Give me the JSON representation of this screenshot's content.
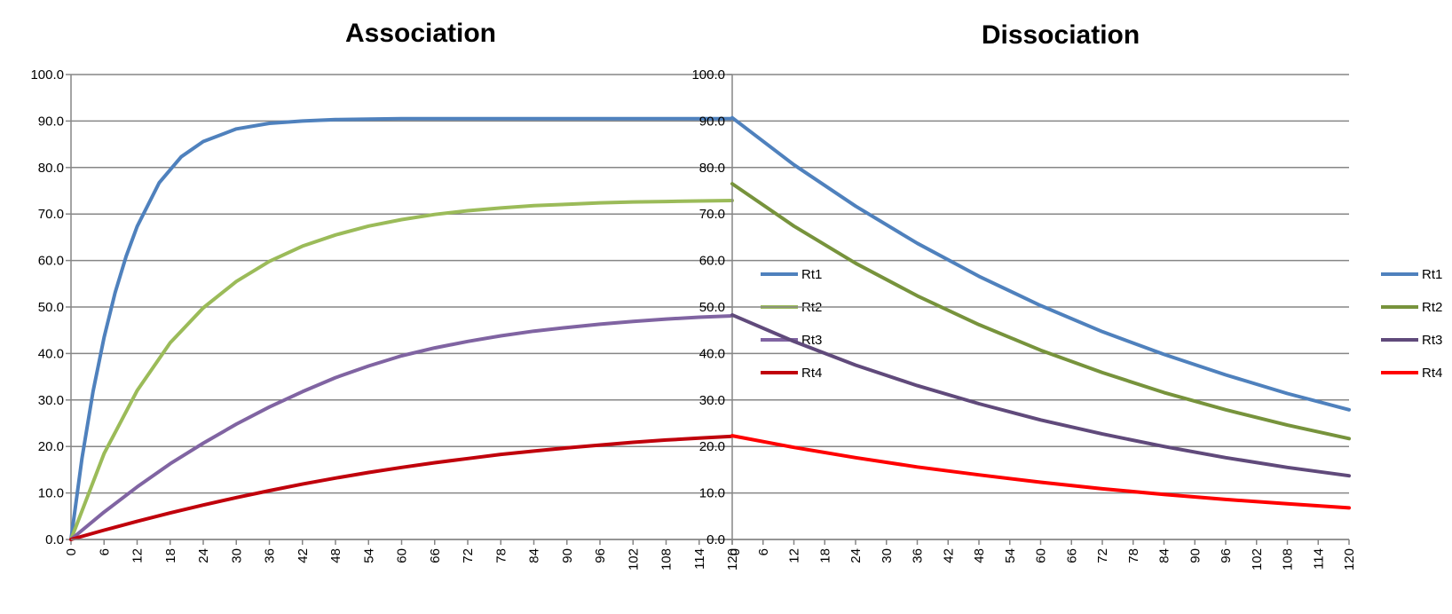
{
  "charts": [
    {
      "id": "association",
      "title": "Association",
      "legend_placement": "right-inside",
      "chart_data": {
        "type": "line",
        "title": "Association",
        "xlabel": "",
        "ylabel": "",
        "xlim": [
          0,
          120
        ],
        "ylim": [
          0,
          100
        ],
        "grid": true,
        "y_ticks": [
          "0.0",
          "10.0",
          "20.0",
          "30.0",
          "40.0",
          "50.0",
          "60.0",
          "70.0",
          "80.0",
          "90.0",
          "100.0"
        ],
        "x_ticks": [
          "0",
          "6",
          "12",
          "18",
          "24",
          "30",
          "36",
          "42",
          "48",
          "54",
          "60",
          "66",
          "72",
          "78",
          "84",
          "90",
          "96",
          "102",
          "108",
          "114",
          "120"
        ],
        "series": [
          {
            "name": "Rt1",
            "color": "#4F81BD",
            "x": [
              0,
              2,
              4,
              6,
              8,
              10,
              12,
              16,
              20,
              24,
              30,
              36,
              42,
              48,
              54,
              60,
              72,
              84,
              96,
              108,
              120
            ],
            "y": [
              0,
              17.5,
              31.8,
              43.5,
              53.1,
              60.9,
              67.3,
              76.7,
              82.3,
              85.6,
              88.3,
              89.5,
              90.0,
              90.3,
              90.4,
              90.5,
              90.5,
              90.5,
              90.5,
              90.5,
              90.5
            ]
          },
          {
            "name": "Rt2",
            "color": "#9BBB59",
            "x": [
              0,
              6,
              12,
              18,
              24,
              30,
              36,
              42,
              48,
              54,
              60,
              66,
              72,
              78,
              84,
              90,
              96,
              102,
              108,
              114,
              120
            ],
            "y": [
              0,
              18.5,
              32.0,
              42.3,
              49.8,
              55.5,
              59.8,
              63.1,
              65.5,
              67.4,
              68.8,
              69.9,
              70.7,
              71.3,
              71.8,
              72.1,
              72.4,
              72.6,
              72.7,
              72.8,
              72.9
            ]
          },
          {
            "name": "Rt3",
            "color": "#8064A2",
            "x": [
              0,
              6,
              12,
              18,
              24,
              30,
              36,
              42,
              48,
              54,
              60,
              66,
              72,
              78,
              84,
              90,
              96,
              102,
              108,
              114,
              120
            ],
            "y": [
              0,
              5.9,
              11.3,
              16.3,
              20.7,
              24.8,
              28.5,
              31.8,
              34.8,
              37.3,
              39.5,
              41.2,
              42.6,
              43.8,
              44.8,
              45.6,
              46.3,
              46.9,
              47.4,
              47.8,
              48.1
            ]
          },
          {
            "name": "Rt4",
            "color": "#C0000B",
            "x": [
              0,
              6,
              12,
              18,
              24,
              30,
              36,
              42,
              48,
              54,
              60,
              66,
              72,
              78,
              84,
              90,
              96,
              102,
              108,
              114,
              120
            ],
            "y": [
              0,
              2.0,
              3.9,
              5.7,
              7.4,
              9.0,
              10.5,
              11.9,
              13.2,
              14.4,
              15.5,
              16.5,
              17.4,
              18.3,
              19.0,
              19.7,
              20.3,
              20.9,
              21.4,
              21.8,
              22.2
            ]
          }
        ]
      }
    },
    {
      "id": "dissociation",
      "title": "Dissociation",
      "legend_placement": "right",
      "chart_data": {
        "type": "line",
        "title": "Dissociation",
        "xlabel": "",
        "ylabel": "",
        "xlim": [
          0,
          120
        ],
        "ylim": [
          0,
          100
        ],
        "grid": true,
        "y_ticks": [
          "0.0",
          "10.0",
          "20.0",
          "30.0",
          "40.0",
          "50.0",
          "60.0",
          "70.0",
          "80.0",
          "90.0",
          "100.0"
        ],
        "x_ticks": [
          "0",
          "6",
          "12",
          "18",
          "24",
          "30",
          "36",
          "42",
          "48",
          "54",
          "60",
          "66",
          "72",
          "78",
          "84",
          "90",
          "96",
          "102",
          "108",
          "114",
          "120"
        ],
        "series": [
          {
            "name": "Rt1",
            "color": "#4F81BD",
            "x": [
              0,
              12,
              24,
              36,
              48,
              60,
              72,
              84,
              96,
              108,
              120
            ],
            "y": [
              90.7,
              80.6,
              71.7,
              63.7,
              56.6,
              50.3,
              44.7,
              39.8,
              35.4,
              31.4,
              27.9
            ]
          },
          {
            "name": "Rt2",
            "color": "#77933C",
            "x": [
              0,
              12,
              24,
              36,
              48,
              60,
              72,
              84,
              96,
              108,
              120
            ],
            "y": [
              76.5,
              67.4,
              59.4,
              52.4,
              46.2,
              40.7,
              35.9,
              31.6,
              27.9,
              24.6,
              21.7
            ]
          },
          {
            "name": "Rt3",
            "color": "#604A7B",
            "x": [
              0,
              12,
              24,
              36,
              48,
              60,
              72,
              84,
              96,
              108,
              120
            ],
            "y": [
              48.3,
              42.6,
              37.5,
              33.1,
              29.2,
              25.7,
              22.7,
              20.0,
              17.6,
              15.5,
              13.7
            ]
          },
          {
            "name": "Rt4",
            "color": "#FF0000",
            "x": [
              0,
              12,
              24,
              36,
              48,
              60,
              72,
              84,
              96,
              108,
              120
            ],
            "y": [
              22.3,
              19.8,
              17.6,
              15.6,
              13.9,
              12.3,
              10.9,
              9.7,
              8.6,
              7.7,
              6.8
            ]
          }
        ]
      }
    }
  ]
}
